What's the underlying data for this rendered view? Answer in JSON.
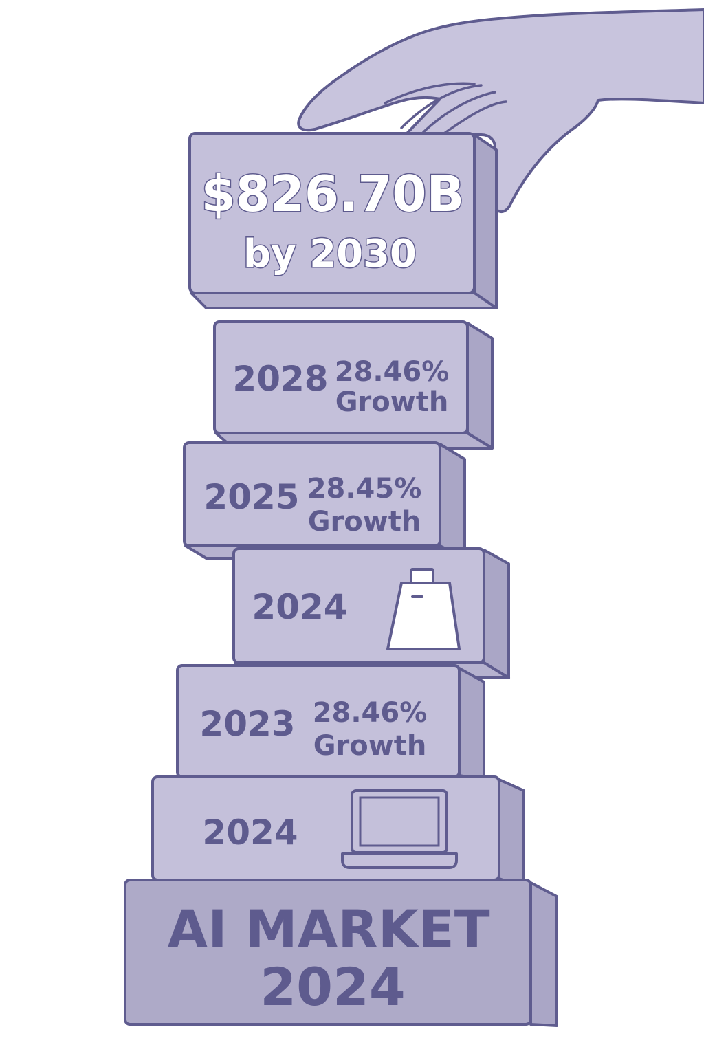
{
  "top_block": {
    "value": "$826.70B",
    "subtitle": "by 2030"
  },
  "blocks": [
    {
      "year": "2028",
      "growth": "28.46%",
      "growth_label": "Growth"
    },
    {
      "year": "2025",
      "growth": "28.45%",
      "growth_label": "Growth"
    },
    {
      "year": "2024",
      "icon": "shopping-bag-icon"
    },
    {
      "year": "2023",
      "growth": "28.46%",
      "growth_label": "Growth"
    },
    {
      "year": "2024",
      "icon": "laptop-icon"
    }
  ],
  "base_block": {
    "line1": "AI MARKET",
    "line2": "2024"
  },
  "colors": {
    "block_face": "#c4c0da",
    "block_outline": "#5f5c8f",
    "text": "#5e5b8e"
  }
}
